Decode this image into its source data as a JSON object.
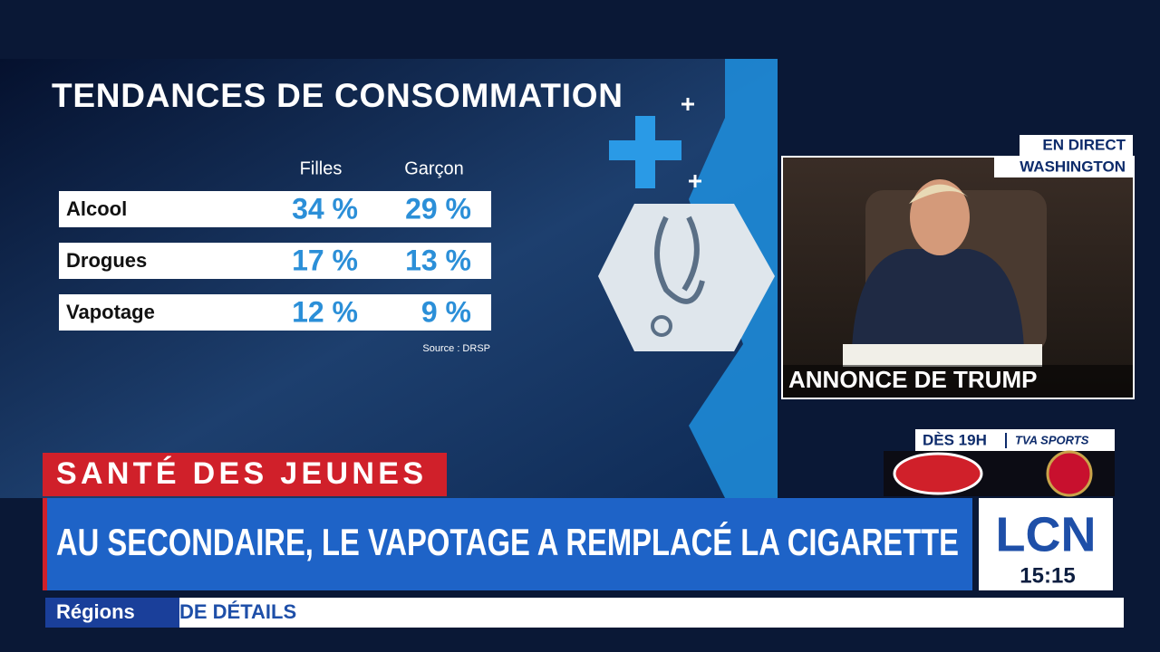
{
  "graphic": {
    "title": "TENDANCES DE CONSOMMATION",
    "table": {
      "columns": [
        "Filles",
        "Garçon"
      ],
      "rows": [
        [
          "Alcool",
          "34 %",
          "29 %"
        ],
        [
          "Drogues",
          "17 %",
          "13 %"
        ],
        [
          "Vapotage",
          "12 %",
          "9 %"
        ]
      ]
    },
    "source": "Source : DRSP"
  },
  "live": {
    "status": "EN DIRECT",
    "location": "WASHINGTON",
    "caption": "ANNONCE DE TRUMP"
  },
  "promo": {
    "time": "DÈS 19H",
    "network": "TVA SPORTS"
  },
  "banner": {
    "tag": "SANTÉ DES JEUNES",
    "headline": "AU SECONDAIRE, LE VAPOTAGE A REMPLACÉ LA CIGARETTE"
  },
  "channel": {
    "logo": "LCN",
    "clock": "15:15"
  },
  "ticker": {
    "section": "Régions",
    "text": "DE DÉTAILS"
  }
}
